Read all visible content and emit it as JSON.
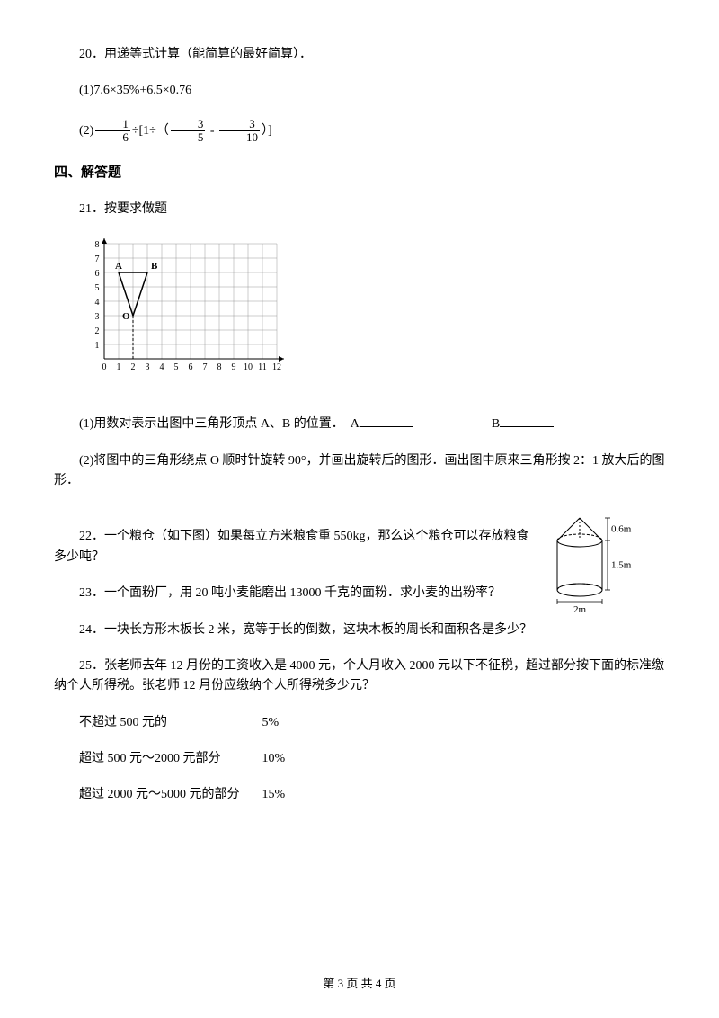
{
  "q20": {
    "num": "20",
    "title": "．用递等式计算（能简算的最好简算）．",
    "item1": "(1)7.6×35%+6.5×0.76",
    "item2_prefix": "(2)",
    "item2_mid": "÷[1÷（",
    "item2_minus": " - ",
    "item2_suffix": "）]",
    "frac1_num": "1",
    "frac1_den": "6",
    "frac2_num": "3",
    "frac2_den": "5",
    "frac3_num": "3",
    "frac3_den": "10"
  },
  "section4": "四、解答题",
  "q21": {
    "num": "21",
    "title": "．按要求做题",
    "sub1_prefix": "(1)用数对表示出图中三角形顶点 A、B 的位置．　A",
    "sub1_b": "B",
    "sub2": "(2)将图中的三角形绕点 O 顺时针旋转 90°，并画出旋转后的图形．画出图中原来三角形按 2：1 放大后的图形．",
    "grid": {
      "cols": 12,
      "rows": 8,
      "x_labels": [
        "0",
        "1",
        "2",
        "3",
        "4",
        "5",
        "6",
        "7",
        "8",
        "9",
        "10",
        "11",
        "12"
      ],
      "y_labels": [
        "1",
        "2",
        "3",
        "4",
        "5",
        "6",
        "7",
        "8"
      ],
      "points": {
        "A": [
          1,
          6
        ],
        "B": [
          3,
          6
        ],
        "O": [
          2,
          3
        ]
      },
      "grid_color": "#999999",
      "axis_color": "#000000",
      "bg": "#ffffff",
      "cell": 16
    }
  },
  "q22": {
    "num": "22",
    "text": "．一个粮仓（如下图）如果每立方米粮食重 550kg，那么这个粮仓可以存放粮食多少吨？",
    "diagram": {
      "cone_h": "0.6m",
      "cyl_h": "1.5m",
      "cyl_d": "2m"
    }
  },
  "q23": {
    "num": "23",
    "text": "．一个面粉厂，用 20 吨小麦能磨出 13000 千克的面粉．求小麦的出粉率？"
  },
  "q24": {
    "num": "24",
    "text": "．一块长方形木板长 2 米，宽等于长的倒数，这块木板的周长和面积各是多少？"
  },
  "q25": {
    "num": "25",
    "text": "．张老师去年 12 月份的工资收入是 4000 元，个人月收入 2000 元以下不征税，超过部分按下面的标准缴纳个人所得税。张老师 12 月份应缴纳个人所得税多少元？",
    "rows": [
      {
        "label": "不超过 500 元的",
        "rate": "5%"
      },
      {
        "label": "超过 500 元～2000 元部分",
        "rate": "10%"
      },
      {
        "label": "超过 2000 元～5000 元的部分",
        "rate": "15%"
      }
    ]
  },
  "footer": {
    "text": "第 3 页 共 4 页"
  }
}
